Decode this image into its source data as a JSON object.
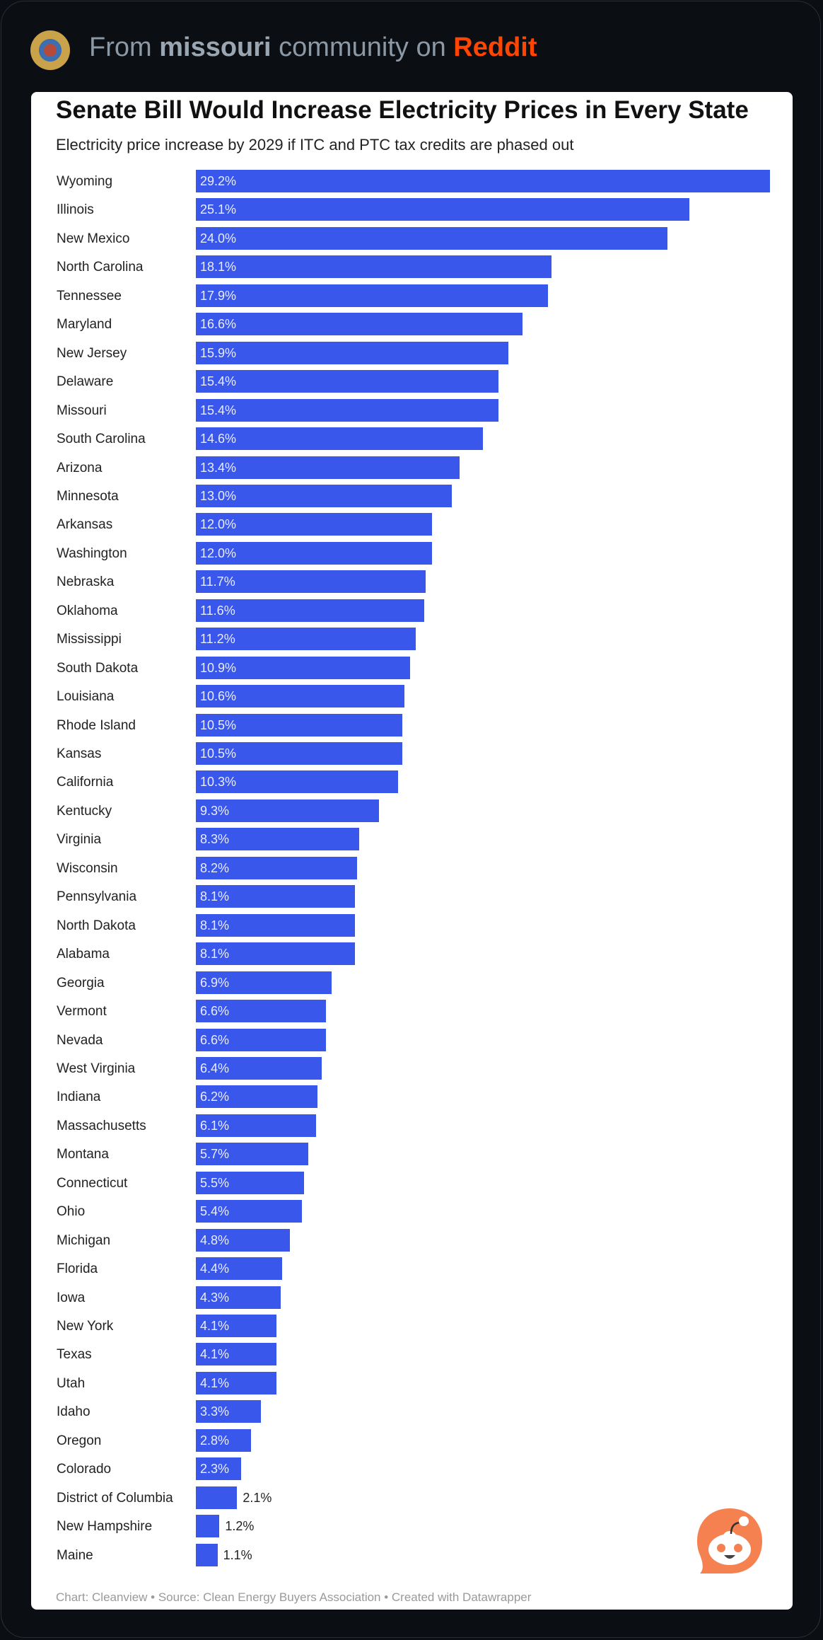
{
  "header": {
    "prefix": "From",
    "community": "missouri",
    "middle": "community on",
    "platform": "Reddit"
  },
  "colors": {
    "bar": "#3a57ec",
    "reddit": "#ff4500"
  },
  "chart_data": {
    "type": "bar",
    "orientation": "horizontal",
    "title": "Senate Bill Would Increase Electricity Prices in Every State",
    "subtitle": "Electricity price increase by 2029 if ITC and PTC tax credits are phased out",
    "footer": "Chart: Cleanview • Source: Clean Energy Buyers Association  • Created with Datawrapper",
    "unit": "%",
    "xlim": [
      0,
      29.2
    ],
    "grid": false,
    "categories": [
      "Wyoming",
      "Illinois",
      "New Mexico",
      "North Carolina",
      "Tennessee",
      "Maryland",
      "New Jersey",
      "Delaware",
      "Missouri",
      "South Carolina",
      "Arizona",
      "Minnesota",
      "Arkansas",
      "Washington",
      "Nebraska",
      "Oklahoma",
      "Mississippi",
      "South Dakota",
      "Louisiana",
      "Rhode Island",
      "Kansas",
      "California",
      "Kentucky",
      "Virginia",
      "Wisconsin",
      "Pennsylvania",
      "North Dakota",
      "Alabama",
      "Georgia",
      "Vermont",
      "Nevada",
      "West Virginia",
      "Indiana",
      "Massachusetts",
      "Montana",
      "Connecticut",
      "Ohio",
      "Michigan",
      "Florida",
      "Iowa",
      "New York",
      "Texas",
      "Utah",
      "Idaho",
      "Oregon",
      "Colorado",
      "District of Columbia",
      "New Hampshire",
      "Maine"
    ],
    "values": [
      29.2,
      25.1,
      24.0,
      18.1,
      17.9,
      16.6,
      15.9,
      15.4,
      15.4,
      14.6,
      13.4,
      13.0,
      12.0,
      12.0,
      11.7,
      11.6,
      11.2,
      10.9,
      10.6,
      10.5,
      10.5,
      10.3,
      9.3,
      8.3,
      8.2,
      8.1,
      8.1,
      8.1,
      6.9,
      6.6,
      6.6,
      6.4,
      6.2,
      6.1,
      5.7,
      5.5,
      5.4,
      4.8,
      4.4,
      4.3,
      4.1,
      4.1,
      4.1,
      3.3,
      2.8,
      2.3,
      2.1,
      1.2,
      1.1
    ]
  }
}
